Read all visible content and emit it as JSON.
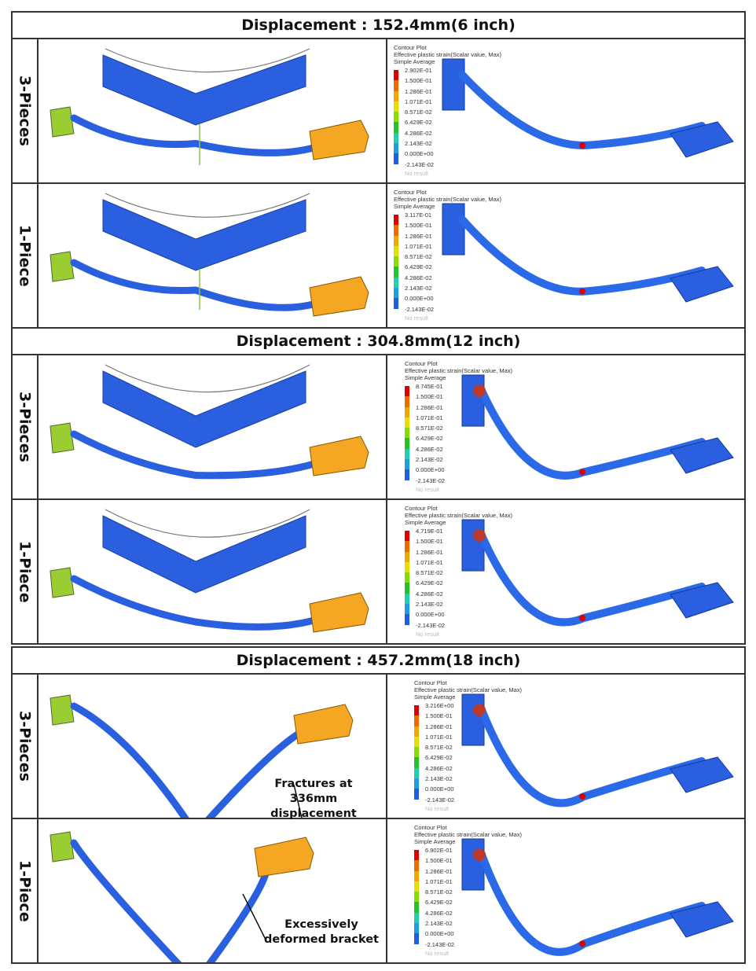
{
  "legend_common": {
    "title": "Contour Plot",
    "quantity": "Effective plastic strain(Scalar value, Max)",
    "method": "Simple Average",
    "levels": [
      "1.500E-01",
      "1.286E-01",
      "1.071E-01",
      "8.571E-02",
      "6.429E-02",
      "4.286E-02",
      "2.143E-02",
      "0.000E+00",
      "-2.143E-02"
    ],
    "no_result": "No result",
    "colors": [
      "#e00000",
      "#f06a00",
      "#f0a800",
      "#e6e000",
      "#88dd00",
      "#22c22a",
      "#1ed0b0",
      "#1ea0e0",
      "#1e5ee0",
      "#0a00b8"
    ]
  },
  "sections": [
    {
      "title": "Displacement : 152.4mm(6 inch)",
      "rows": [
        {
          "label": "3-Pieces",
          "legend_max": "2.902E-01"
        },
        {
          "label": "1-Piece",
          "legend_max": "3.117E-01"
        }
      ]
    },
    {
      "title": "Displacement : 304.8mm(12 inch)",
      "rows": [
        {
          "label": "3-Pieces",
          "legend_max": "8.745E-01"
        },
        {
          "label": "1-Piece",
          "legend_max": "4.719E-01"
        }
      ]
    },
    {
      "title": "Displacement : 457.2mm(18 inch)",
      "rows": [
        {
          "label": "3-Pieces",
          "legend_max": "3.216E+00",
          "annotation": "Fractures at 336mm displacement"
        },
        {
          "label": "1-Piece",
          "legend_max": "6.902E-01",
          "annotation": "Excessively deformed bracket"
        }
      ]
    }
  ]
}
